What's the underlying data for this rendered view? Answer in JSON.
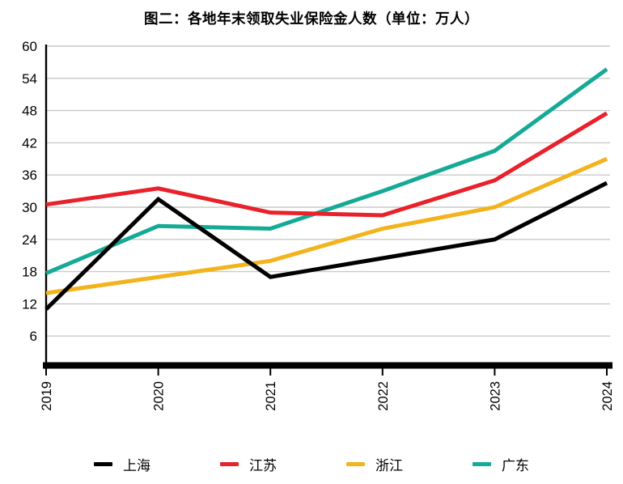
{
  "chart_data": {
    "type": "line",
    "title": "图二：各地年末领取失业保险金人数（单位：万人）",
    "unit": "万人",
    "x": [
      "2019",
      "2020",
      "2021",
      "2022",
      "2023",
      "2024"
    ],
    "xlabel": "",
    "ylabel": "",
    "ylim": [
      0,
      60
    ],
    "yticks": [
      6,
      12,
      18,
      24,
      30,
      36,
      42,
      48,
      54,
      60
    ],
    "grid": true,
    "legend_position": "bottom",
    "series": [
      {
        "name": "上海",
        "color": "#000000",
        "values": [
          11,
          31.5,
          17,
          20.5,
          24,
          34.5
        ]
      },
      {
        "name": "江苏",
        "color": "#E8212B",
        "values": [
          30.5,
          33.5,
          29,
          28.5,
          35,
          47.5
        ]
      },
      {
        "name": "浙江",
        "color": "#F2B31C",
        "values": [
          14,
          17,
          20,
          26,
          30,
          39
        ]
      },
      {
        "name": "广东",
        "color": "#14AA96",
        "values": [
          17.7,
          26.5,
          26,
          33,
          40.5,
          55.7
        ]
      }
    ]
  },
  "colors": {
    "gridline": "#C9C9C9",
    "axis": "#000000",
    "tick_label": "#000000"
  }
}
